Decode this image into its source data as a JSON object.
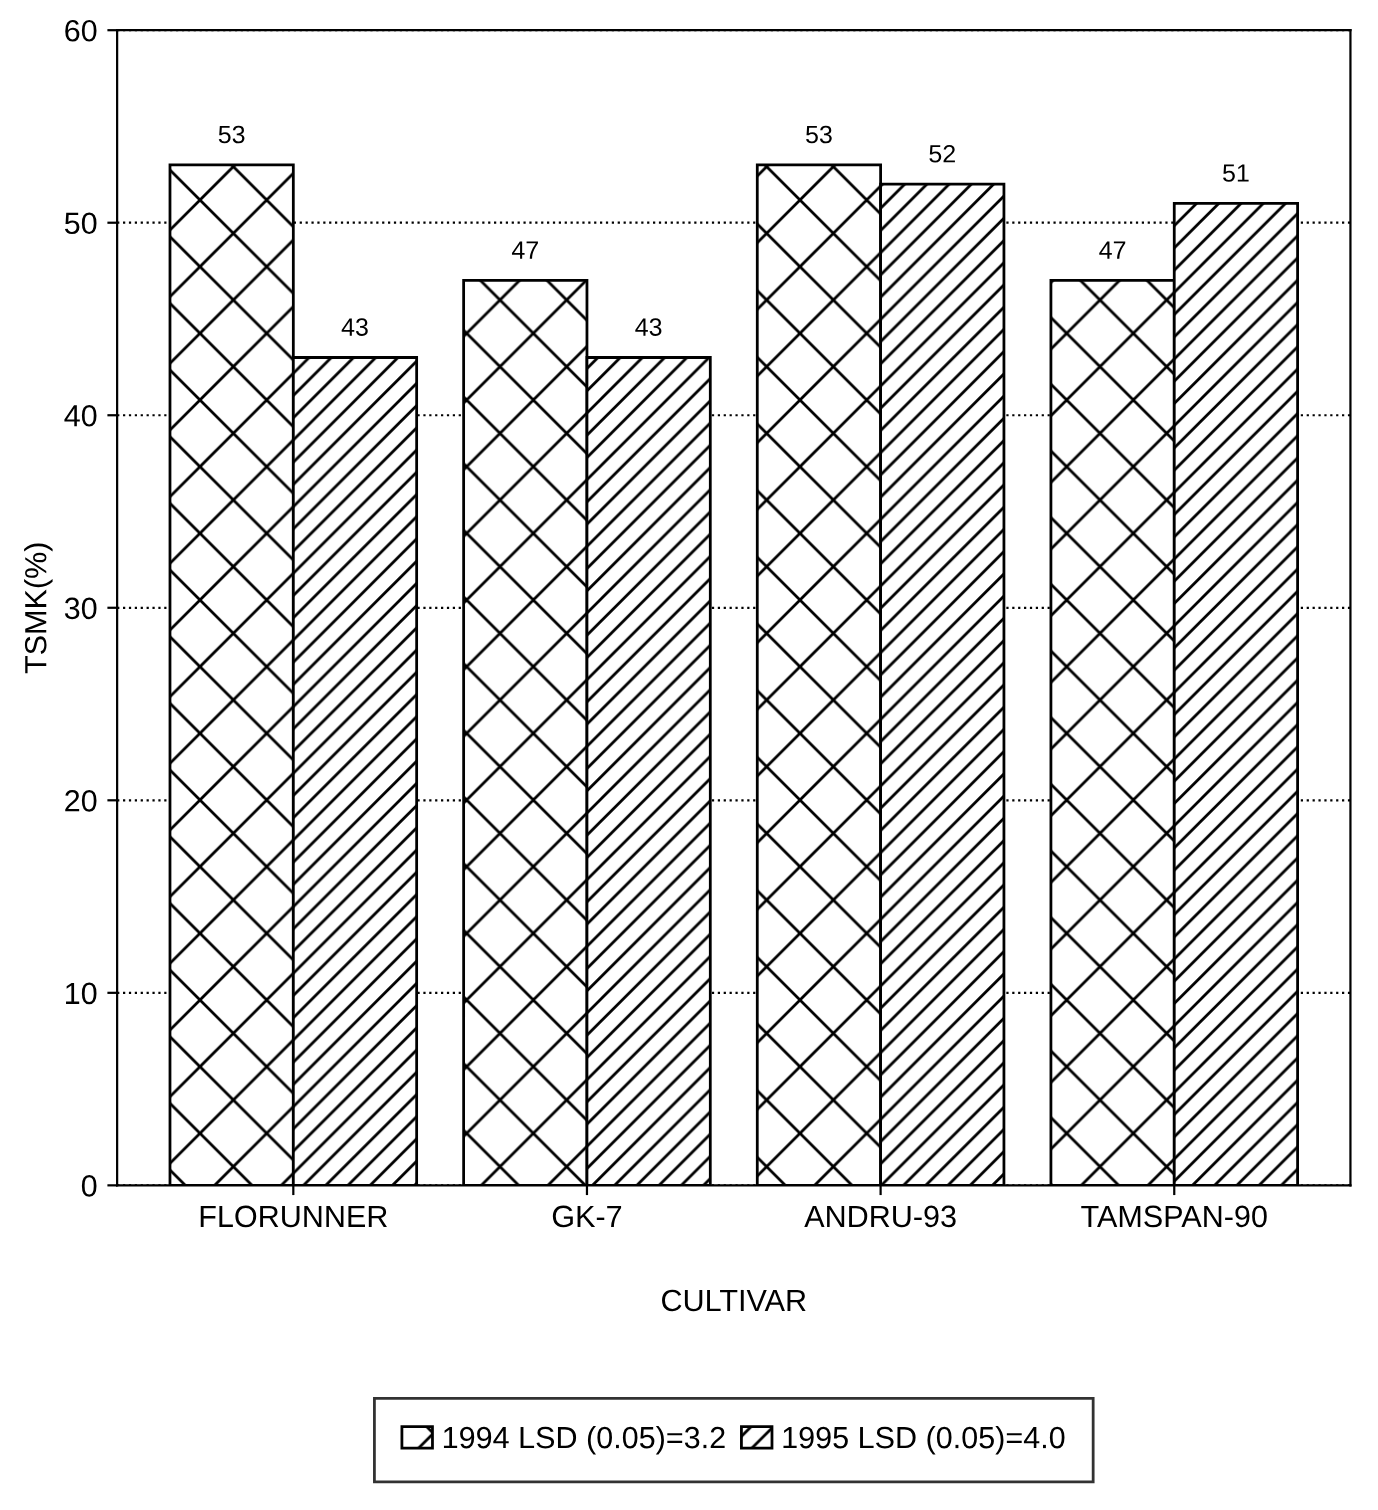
{
  "chart_data": {
    "type": "bar",
    "xlabel": "CULTIVAR",
    "ylabel": "TSMK(%)",
    "categories": [
      "FLORUNNER",
      "GK-7",
      "ANDRU-93",
      "TAMSPAN-90"
    ],
    "series": [
      {
        "name": "1994 LSD (0.05)=3.2",
        "color": "#000000",
        "values": [
          53,
          47,
          53,
          47
        ]
      },
      {
        "name": "1995 LSD (0.05)=4.0",
        "color": "#000000",
        "values": [
          43,
          43,
          52,
          51
        ]
      }
    ],
    "ylim": [
      0,
      60
    ],
    "yticks": [
      0,
      10,
      20,
      30,
      40,
      50,
      60
    ],
    "grid": "y",
    "legend": "bottom",
    "data_labels": true
  }
}
